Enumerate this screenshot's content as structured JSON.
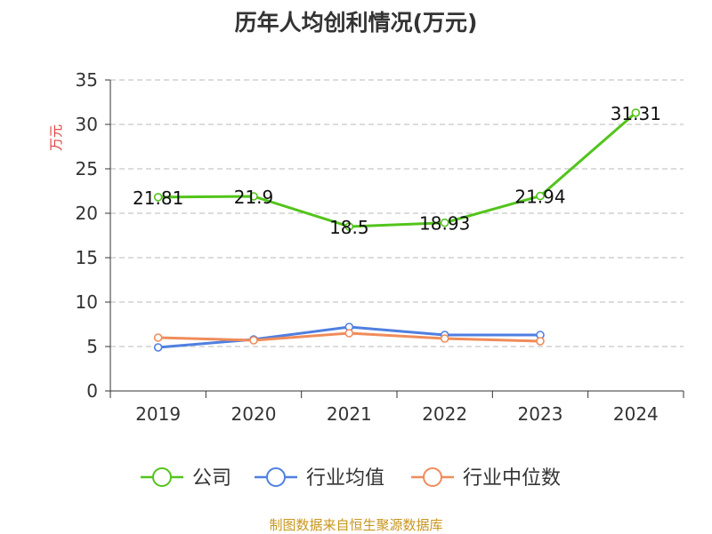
{
  "chart_data": {
    "type": "line",
    "title": "历年人均创利情况(万元)",
    "ylabel": "万元",
    "xlabel": "",
    "categories": [
      "2019",
      "2020",
      "2021",
      "2022",
      "2023",
      "2024"
    ],
    "ylim": [
      0,
      35
    ],
    "yticks": [
      0,
      5,
      10,
      15,
      20,
      25,
      30,
      35
    ],
    "grid": "horizontal dashed",
    "legend_position": "bottom",
    "series": [
      {
        "name": "公司",
        "color": "#52c41a",
        "values": [
          21.81,
          21.9,
          18.5,
          18.93,
          21.94,
          31.31
        ],
        "labels": [
          "21.81",
          "21.9",
          "18.5",
          "18.93",
          "21.94",
          "31.31"
        ]
      },
      {
        "name": "行业均值",
        "color": "#4f7fe0",
        "values": [
          4.9,
          5.8,
          7.2,
          6.3,
          6.3,
          null
        ]
      },
      {
        "name": "行业中位数",
        "color": "#f08c5a",
        "values": [
          6.0,
          5.7,
          6.5,
          5.9,
          5.6,
          null
        ]
      }
    ]
  },
  "source": "制图数据来自恒生聚源数据库"
}
